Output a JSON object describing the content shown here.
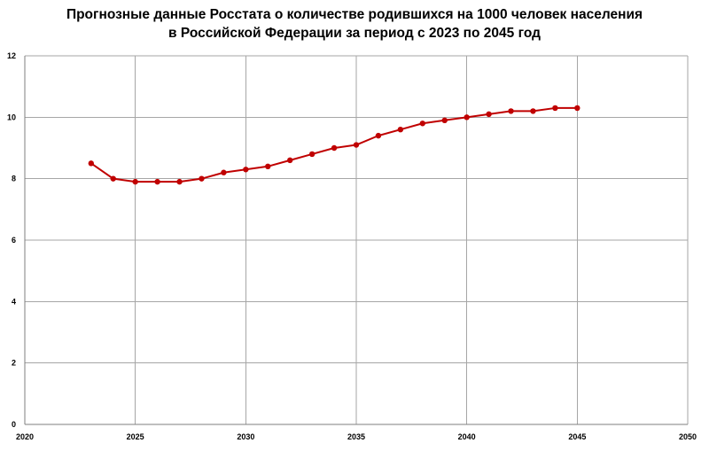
{
  "chart_data": {
    "type": "line",
    "title_lines": [
      "Прогнозные данные Росстата о количестве родившихся на 1000 человек населения",
      "в Российской Федерации за период с 2023 по 2045 год"
    ],
    "xlabel": "",
    "ylabel": "",
    "xlim": [
      2020,
      2050
    ],
    "ylim": [
      0,
      12
    ],
    "x_ticks": [
      2020,
      2025,
      2030,
      2035,
      2040,
      2045,
      2050
    ],
    "y_ticks": [
      0,
      2,
      4,
      6,
      8,
      10,
      12
    ],
    "grid": true,
    "legend": "none",
    "series": [
      {
        "color": "#c00000",
        "x": [
          2023,
          2024,
          2025,
          2026,
          2027,
          2028,
          2029,
          2030,
          2031,
          2032,
          2033,
          2034,
          2035,
          2036,
          2037,
          2038,
          2039,
          2040,
          2041,
          2042,
          2043,
          2044,
          2045
        ],
        "y": [
          8.5,
          8.0,
          7.9,
          7.9,
          7.9,
          8.0,
          8.2,
          8.3,
          8.4,
          8.6,
          8.8,
          9.0,
          9.1,
          9.4,
          9.6,
          9.8,
          9.9,
          10.0,
          10.1,
          10.2,
          10.2,
          10.3,
          10.3
        ]
      }
    ]
  }
}
